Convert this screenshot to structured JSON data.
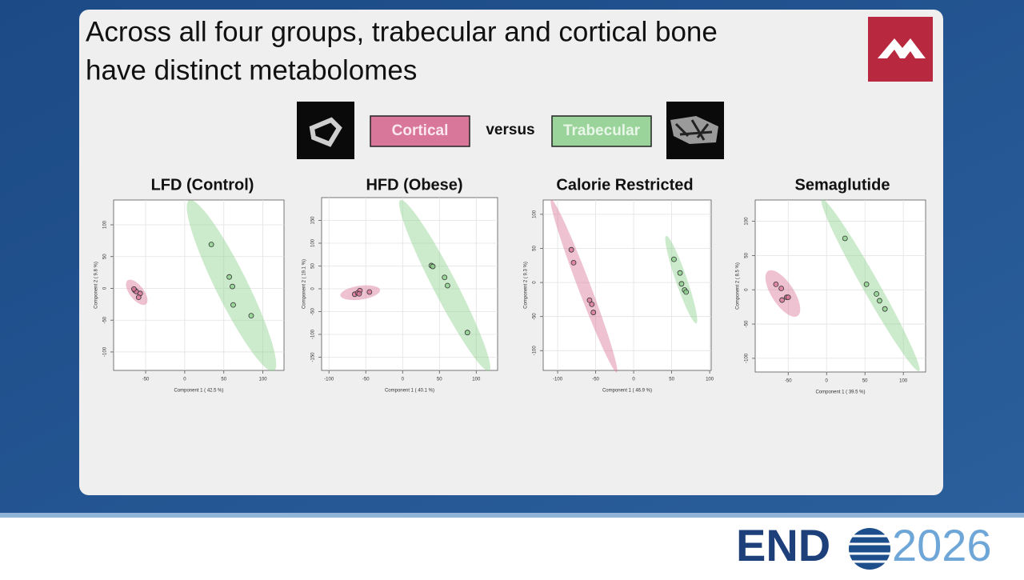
{
  "slide": {
    "title_line1": "Across all four groups, trabecular and cortical bone",
    "title_line2": "have distinct metabolomes",
    "versus": "versus",
    "footer_left": "END",
    "footer_right": "2026"
  },
  "legend": [
    "Cortical",
    "Trabecular"
  ],
  "chart_data": [
    {
      "type": "scatter",
      "title": "LFD (Control)",
      "xlabel": "Component 1 ( 42.5 %)",
      "ylabel": "Component 2 ( 9.8 %)",
      "xlim": [
        -91,
        127
      ],
      "ylim": [
        -129,
        139
      ],
      "xticks": [
        -50,
        0,
        50,
        100
      ],
      "yticks": [
        -100,
        -50,
        0,
        50,
        100
      ],
      "grid": true,
      "series": [
        {
          "color": "#d9779a",
          "x": [
            -64,
            -62,
            -57,
            -59,
            -65
          ],
          "y": [
            -3,
            -5,
            -8,
            -14,
            -1
          ]
        },
        {
          "color": "#8fd18f",
          "x": [
            34,
            57,
            61,
            62,
            85
          ],
          "y": [
            69,
            18,
            3,
            -26,
            -43
          ]
        }
      ]
    },
    {
      "type": "scatter",
      "title": "HFD (Obese)",
      "xlabel": "Component 1 ( 40.1 %)",
      "ylabel": "Component 2 ( 19.1 %)",
      "xlim": [
        -110,
        129
      ],
      "ylim": [
        -179,
        200
      ],
      "xticks": [
        -100,
        -50,
        0,
        50,
        100
      ],
      "yticks": [
        -150,
        -100,
        -50,
        0,
        50,
        100,
        150
      ],
      "grid": true,
      "series": [
        {
          "color": "#d9779a",
          "x": [
            -65,
            -61,
            -58,
            -59,
            -45
          ],
          "y": [
            -12,
            -9,
            -4,
            -11,
            -7
          ]
        },
        {
          "color": "#8fd18f",
          "x": [
            39,
            41,
            57,
            61,
            88
          ],
          "y": [
            51,
            49,
            25,
            7,
            -96
          ]
        }
      ]
    },
    {
      "type": "scatter",
      "title": "Calorie Restricted",
      "xlabel": "Component 1 ( 46.9 %)",
      "ylabel": "Component 2 ( 9.3 %)",
      "xlim": [
        -119,
        102
      ],
      "ylim": [
        -129,
        121
      ],
      "xticks": [
        -100,
        -50,
        0,
        50,
        100
      ],
      "yticks": [
        -100,
        -50,
        0,
        50,
        100
      ],
      "grid": true,
      "series": [
        {
          "color": "#d9779a",
          "x": [
            -82,
            -79,
            -58,
            -55,
            -53
          ],
          "y": [
            48,
            29,
            -26,
            -32,
            -44
          ]
        },
        {
          "color": "#8fd18f",
          "x": [
            53,
            61,
            63,
            67,
            69
          ],
          "y": [
            34,
            14,
            -2,
            -11,
            -14
          ]
        }
      ]
    },
    {
      "type": "scatter",
      "title": "Semaglutide",
      "xlabel": "Component 1 ( 39.5 %)",
      "ylabel": "Component 2 ( 8.5 %)",
      "xlim": [
        -93,
        129
      ],
      "ylim": [
        -120,
        131
      ],
      "xticks": [
        -50,
        0,
        50,
        100
      ],
      "yticks": [
        -100,
        -50,
        0,
        50,
        100
      ],
      "grid": true,
      "series": [
        {
          "color": "#d9779a",
          "x": [
            -66,
            -59,
            -58,
            -52,
            -50
          ],
          "y": [
            8,
            2,
            -15,
            -11,
            -11
          ]
        },
        {
          "color": "#8fd18f",
          "x": [
            24,
            52,
            65,
            69,
            76
          ],
          "y": [
            75,
            8,
            -6,
            -16,
            -28
          ]
        }
      ]
    }
  ]
}
